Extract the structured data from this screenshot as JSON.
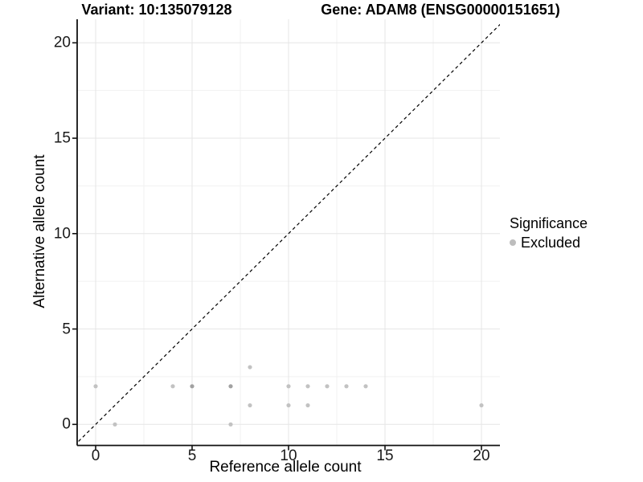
{
  "chart_data": {
    "type": "scatter",
    "title_variant": "Variant: 10:135079128",
    "title_gene": "Gene: ADAM8 (ENSG00000151651)",
    "xlabel": "Reference allele count",
    "ylabel": "Alternative allele count",
    "xlim": [
      -1,
      21
    ],
    "ylim": [
      -1,
      21
    ],
    "x_ticks": [
      0,
      5,
      10,
      15,
      20
    ],
    "y_ticks": [
      0,
      5,
      10,
      15,
      20
    ],
    "x_minor_ticks": [
      2.5,
      7.5,
      12.5,
      17.5
    ],
    "y_minor_ticks": [
      2.5,
      7.5,
      12.5,
      17.5
    ],
    "grid": true,
    "legend_position": "right",
    "identity_line": {
      "slope": 1,
      "intercept": 0,
      "style": "dashed",
      "color": "#000000"
    },
    "series": [
      {
        "name": "Excluded",
        "color": "#c2c2c2",
        "overplot_color": "#a1a1a1",
        "points": [
          {
            "x": 0,
            "y": 2,
            "overplotted": false
          },
          {
            "x": 1,
            "y": 0,
            "overplotted": false
          },
          {
            "x": 4,
            "y": 2,
            "overplotted": false
          },
          {
            "x": 5,
            "y": 2,
            "overplotted": true
          },
          {
            "x": 7,
            "y": 0,
            "overplotted": false
          },
          {
            "x": 7,
            "y": 2,
            "overplotted": true
          },
          {
            "x": 8,
            "y": 1,
            "overplotted": false
          },
          {
            "x": 8,
            "y": 3,
            "overplotted": false
          },
          {
            "x": 10,
            "y": 1,
            "overplotted": false
          },
          {
            "x": 10,
            "y": 2,
            "overplotted": false
          },
          {
            "x": 11,
            "y": 1,
            "overplotted": false
          },
          {
            "x": 11,
            "y": 2,
            "overplotted": false
          },
          {
            "x": 12,
            "y": 2,
            "overplotted": false
          },
          {
            "x": 13,
            "y": 2,
            "overplotted": false
          },
          {
            "x": 14,
            "y": 2,
            "overplotted": false
          },
          {
            "x": 20,
            "y": 1,
            "overplotted": false
          }
        ]
      }
    ]
  },
  "legend": {
    "title": "Significance",
    "items": [
      {
        "label": "Excluded",
        "color": "#bdbdbd"
      }
    ]
  },
  "colors": {
    "grid_major": "#e6e6e6",
    "grid_minor": "#f1f1f1",
    "axis": "#111111",
    "tick_text": "#1a1a1a",
    "background": "#ffffff"
  }
}
